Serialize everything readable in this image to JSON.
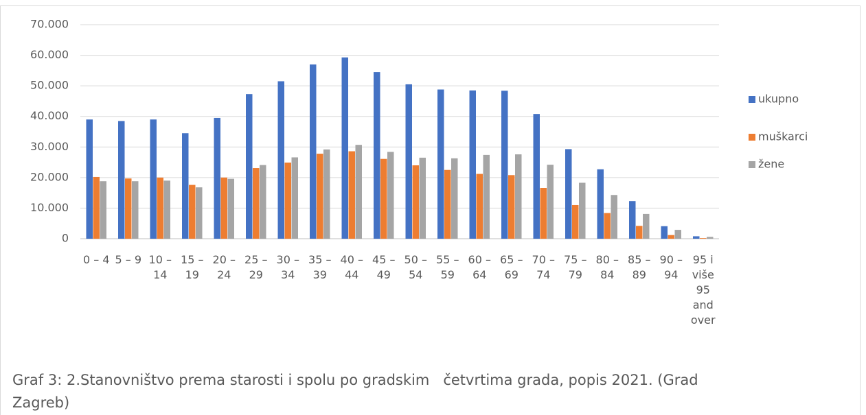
{
  "chart_data": {
    "type": "bar",
    "caption": "Graf 3: 2.Stanovništvo prema starosti i spolu po gradskim   četvrtima grada, popis 2021. (Grad Zagreb)",
    "categories": [
      "0 – 4",
      "5 – 9",
      "10 – 14",
      "15 – 19",
      "20 – 24",
      "25 – 29",
      "30 – 34",
      "35 – 39",
      "40 – 44",
      "45 – 49",
      "50 – 54",
      "55 – 59",
      "60 – 64",
      "65 – 69",
      "70 – 74",
      "75 – 79",
      "80 – 84",
      "85 – 89",
      "90 – 94",
      "95 i više 95 and over"
    ],
    "series": [
      {
        "name": "ukupno",
        "color": "#4472c4",
        "values": [
          39000,
          38500,
          39000,
          34500,
          39500,
          47300,
          51500,
          57000,
          59300,
          54500,
          50500,
          48800,
          48500,
          48400,
          40800,
          29300,
          22700,
          12300,
          4100,
          800
        ]
      },
      {
        "name": "muškarci",
        "color": "#ed7d31",
        "values": [
          20200,
          19700,
          20000,
          17600,
          20000,
          23100,
          24900,
          27800,
          28600,
          26100,
          24000,
          22500,
          21200,
          20800,
          16600,
          11000,
          8400,
          4200,
          1200,
          200
        ]
      },
      {
        "name": "žene",
        "color": "#a5a5a5",
        "values": [
          18800,
          18800,
          19000,
          16800,
          19600,
          24100,
          26600,
          29200,
          30700,
          28400,
          26500,
          26300,
          27400,
          27600,
          24200,
          18300,
          14300,
          8100,
          2900,
          600
        ]
      }
    ],
    "ylim": [
      0,
      70000
    ],
    "yticks": [
      0,
      {
        "value": 10000,
        "label": "10.000"
      },
      {
        "value": 20000,
        "label": "20.000"
      },
      {
        "value": 30000,
        "label": "30.000"
      },
      {
        "value": 40000,
        "label": "40.000"
      },
      {
        "value": 50000,
        "label": "50.000"
      },
      {
        "value": 60000,
        "label": "60.000"
      },
      {
        "value": 70000,
        "label": "70.000"
      }
    ],
    "grid": true,
    "legend": "right"
  }
}
